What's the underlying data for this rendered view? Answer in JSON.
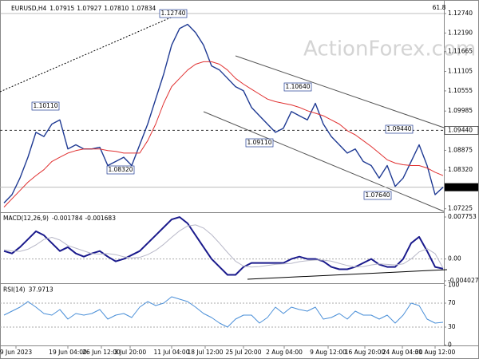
{
  "header": {
    "quote": [
      "1.07915",
      "1.07927",
      "1.07810",
      "1.07834"
    ]
  },
  "watermark": "ActionForex.com",
  "chart_data": [
    {
      "type": "line",
      "title": "EURUSD,H4",
      "ylim": [
        1.0715,
        1.1301
      ],
      "xlim": [
        0,
        55
      ],
      "yticks": [
        {
          "value": 1.1274,
          "label": "1.12740"
        },
        {
          "value": 1.1219,
          "label": "1.12190"
        },
        1.11665,
        1.11105,
        1.10555,
        1.09985,
        {
          "value": 1.0944,
          "label": "1.09440"
        },
        1.08875,
        {
          "value": 1.0832,
          "label": "1.08320"
        },
        1.07834,
        1.07225
      ],
      "annotations": [
        "1.12740",
        "1.10110",
        "1.08320",
        "1.10640",
        "1.09110",
        "1.09440",
        "1.07640",
        "61.8"
      ],
      "series": [
        {
          "name": "EURUSD",
          "color": "#1f3a93",
          "values": [
            1.07389,
            1.07624,
            1.08093,
            1.0868,
            1.09384,
            1.09266,
            1.09618,
            1.09736,
            1.08914,
            1.09032,
            1.08914,
            1.08914,
            1.08961,
            1.08445,
            1.08562,
            1.0868,
            1.08445,
            1.09032,
            1.09618,
            1.10323,
            1.11027,
            1.11848,
            1.12318,
            1.12435,
            1.122,
            1.11848,
            1.11261,
            1.11144,
            1.10909,
            1.10675,
            1.10557,
            1.10088,
            1.09853,
            1.09618,
            1.09384,
            1.09501,
            1.09971,
            1.09853,
            1.09736,
            1.10205,
            1.09618,
            1.09266,
            1.09032,
            1.08797,
            1.08914,
            1.08562,
            1.08445,
            1.08093,
            1.08445,
            1.07858,
            1.08093,
            1.08562,
            1.09032,
            1.08445,
            1.07624,
            1.07834
          ]
        },
        {
          "name": "MA",
          "color": "#e03030",
          "values": [
            1.07271,
            1.07506,
            1.07741,
            1.07976,
            1.08163,
            1.08328,
            1.08562,
            1.0868,
            1.08797,
            1.08867,
            1.08914,
            1.08914,
            1.08914,
            1.08867,
            1.08844,
            1.08797,
            1.08797,
            1.08797,
            1.09149,
            1.09618,
            1.10205,
            1.10675,
            1.10909,
            1.11144,
            1.11308,
            1.11379,
            1.11379,
            1.11308,
            1.11144,
            1.10909,
            1.10745,
            1.10604,
            1.10463,
            1.10323,
            1.10252,
            1.10205,
            1.10158,
            1.10088,
            1.09994,
            1.09924,
            1.09853,
            1.09736,
            1.09618,
            1.09431,
            1.09313,
            1.09149,
            1.08985,
            1.08797,
            1.08609,
            1.08515,
            1.08468,
            1.08445,
            1.08445,
            1.08375,
            1.08257,
            1.08163
          ]
        }
      ]
    },
    {
      "type": "line",
      "title": "MACD(12,26,9)",
      "ylim": [
        -0.00447,
        0.00834
      ],
      "xlim": [
        0,
        55
      ],
      "yticks": [
        0.007753,
        {
          "value": 0,
          "label": "0.00"
        },
        -0.004027
      ],
      "series": [
        {
          "name": "MACD",
          "color": "#1a1a8c",
          "values": [
            0.00146,
            0.00102,
            0.00219,
            0.00365,
            0.00511,
            0.00438,
            0.00292,
            0.00146,
            0.00219,
            0.00102,
            0.00044,
            0.00102,
            0.00146,
            0.00044,
            -0.00044,
            0,
            0.00073,
            0.00146,
            0.00292,
            0.00438,
            0.00584,
            0.0073,
            0.00774,
            0.00657,
            0.00438,
            0.00219,
            0,
            -0.00146,
            -0.00292,
            -0.00292,
            -0.00146,
            -0.00073,
            -0.00073,
            -0.00073,
            -0.00073,
            -0.00073,
            0,
            0.00044,
            0,
            0,
            -0.00044,
            -0.00146,
            -0.0019,
            -0.0019,
            -0.00146,
            -0.00073,
            0,
            -0.00102,
            -0.00146,
            -0.00146,
            0,
            0.00292,
            0.00409,
            0.00146,
            -0.00146,
            -0.001784
          ]
        },
        {
          "name": "Signal",
          "color": "#b8b8c8",
          "values": [
            0.0017,
            0.0015,
            0.0014,
            0.0018,
            0.0026,
            0.0036,
            0.004,
            0.0035,
            0.0025,
            0.002,
            0.0015,
            0.001,
            0.0009,
            0.001,
            0.0008,
            0.0004,
            0.0002,
            0.0003,
            0.0008,
            0.0016,
            0.0027,
            0.004,
            0.0052,
            0.0061,
            0.0063,
            0.0057,
            0.0045,
            0.0029,
            0.0012,
            -0.0004,
            -0.0013,
            -0.0015,
            -0.0014,
            -0.0012,
            -0.001,
            -0.0009,
            -0.0008,
            -0.0005,
            -0.0003,
            -0.0002,
            -0.0002,
            -0.0004,
            -0.0008,
            -0.0012,
            -0.0015,
            -0.0014,
            -0.0011,
            -0.0009,
            -0.001,
            -0.0011,
            -0.0009,
            0,
            0.0013,
            0.0019,
            0.001,
            -0.001683
          ]
        }
      ]
    },
    {
      "type": "line",
      "title": "RSI(14)",
      "ylim": [
        0,
        100
      ],
      "xlim": [
        0,
        55
      ],
      "yticks": [
        100,
        70,
        30,
        0
      ],
      "xticks": [
        {
          "value": 1.5,
          "label": "9 Jun 2023"
        },
        {
          "value": 8,
          "label": "19 Jun 04:00"
        },
        {
          "value": 12.2,
          "label": "26 Jun 12:00"
        },
        {
          "value": 15.8,
          "label": "3 Jul 20:00"
        },
        {
          "value": 21,
          "label": "11 Jul 04:00"
        },
        {
          "value": 25.2,
          "label": "18 Jul 12:00"
        },
        {
          "value": 30,
          "label": "25 Jul 20:00"
        },
        {
          "value": 35.1,
          "label": "2 Aug 04:00"
        },
        {
          "value": 40.6,
          "label": "9 Aug 12:00"
        },
        {
          "value": 45.2,
          "label": "16 Aug 20:00"
        },
        {
          "value": 49.9,
          "label": "24 Aug 04:00"
        },
        {
          "value": 54,
          "label": "31 Aug 12:00"
        }
      ],
      "series": [
        {
          "name": "RSI",
          "color": "#4a8fd8",
          "values": [
            50,
            56.7,
            63.3,
            72.7,
            63.3,
            52.7,
            50,
            59.3,
            43.3,
            52.7,
            50,
            52.7,
            59.3,
            43.3,
            50,
            52.7,
            46,
            63.3,
            72.7,
            66,
            70,
            80.7,
            76.7,
            72.7,
            63.3,
            52.7,
            46,
            36.7,
            30,
            43.3,
            50,
            50,
            36.7,
            46,
            63.3,
            52.7,
            63.3,
            59.3,
            56.7,
            63.3,
            43.3,
            46,
            52.7,
            43.3,
            56.7,
            50,
            50,
            43.3,
            50,
            36.7,
            50,
            70,
            66,
            43.3,
            36.7,
            37.9713
          ]
        }
      ]
    }
  ]
}
